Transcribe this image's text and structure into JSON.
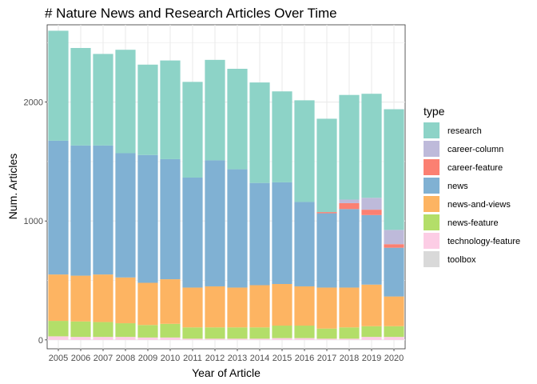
{
  "chart_data": {
    "type": "bar",
    "stacked": true,
    "title": "# Nature News and Research Articles Over Time",
    "xlabel": "Year of Article",
    "ylabel": "Num. Articles",
    "ylim": [
      -75,
      2650
    ],
    "yticks": [
      0,
      1000,
      2000
    ],
    "grid": true,
    "legend_title": "type",
    "legend_position": "right",
    "categories": [
      "2005",
      "2006",
      "2007",
      "2008",
      "2009",
      "2010",
      "2011",
      "2012",
      "2013",
      "2014",
      "2015",
      "2016",
      "2017",
      "2018",
      "2019",
      "2020"
    ],
    "series": [
      {
        "name": "toolbox",
        "color": "#d9d9d9",
        "values": [
          0,
          0,
          0,
          0,
          0,
          0,
          0,
          0,
          0,
          0,
          0,
          0,
          0,
          0,
          0,
          0
        ]
      },
      {
        "name": "technology-feature",
        "color": "#fccde5",
        "values": [
          30,
          25,
          25,
          25,
          20,
          20,
          10,
          10,
          10,
          10,
          15,
          15,
          10,
          10,
          25,
          25
        ]
      },
      {
        "name": "news-feature",
        "color": "#b3de69",
        "values": [
          130,
          130,
          125,
          115,
          105,
          115,
          95,
          95,
          95,
          95,
          105,
          105,
          85,
          95,
          90,
          90
        ]
      },
      {
        "name": "news-and-views",
        "color": "#fdb462",
        "values": [
          390,
          385,
          400,
          385,
          355,
          375,
          335,
          345,
          335,
          355,
          350,
          330,
          345,
          335,
          350,
          250
        ]
      },
      {
        "name": "news",
        "color": "#80b1d3",
        "values": [
          1125,
          1095,
          1085,
          1045,
          1075,
          1010,
          925,
          1060,
          995,
          860,
          855,
          710,
          625,
          660,
          585,
          410
        ]
      },
      {
        "name": "career-feature",
        "color": "#fb8072",
        "values": [
          0,
          0,
          0,
          0,
          0,
          0,
          0,
          0,
          0,
          0,
          0,
          0,
          10,
          50,
          45,
          30
        ]
      },
      {
        "name": "career-column",
        "color": "#bebada",
        "values": [
          0,
          0,
          0,
          0,
          0,
          0,
          0,
          0,
          0,
          0,
          0,
          0,
          0,
          30,
          100,
          120
        ]
      },
      {
        "name": "research",
        "color": "#8dd3c7",
        "values": [
          925,
          820,
          770,
          870,
          760,
          830,
          805,
          845,
          845,
          845,
          765,
          855,
          785,
          880,
          875,
          1015
        ]
      }
    ],
    "legend_order": [
      "research",
      "career-column",
      "career-feature",
      "news",
      "news-and-views",
      "news-feature",
      "technology-feature",
      "toolbox"
    ]
  }
}
